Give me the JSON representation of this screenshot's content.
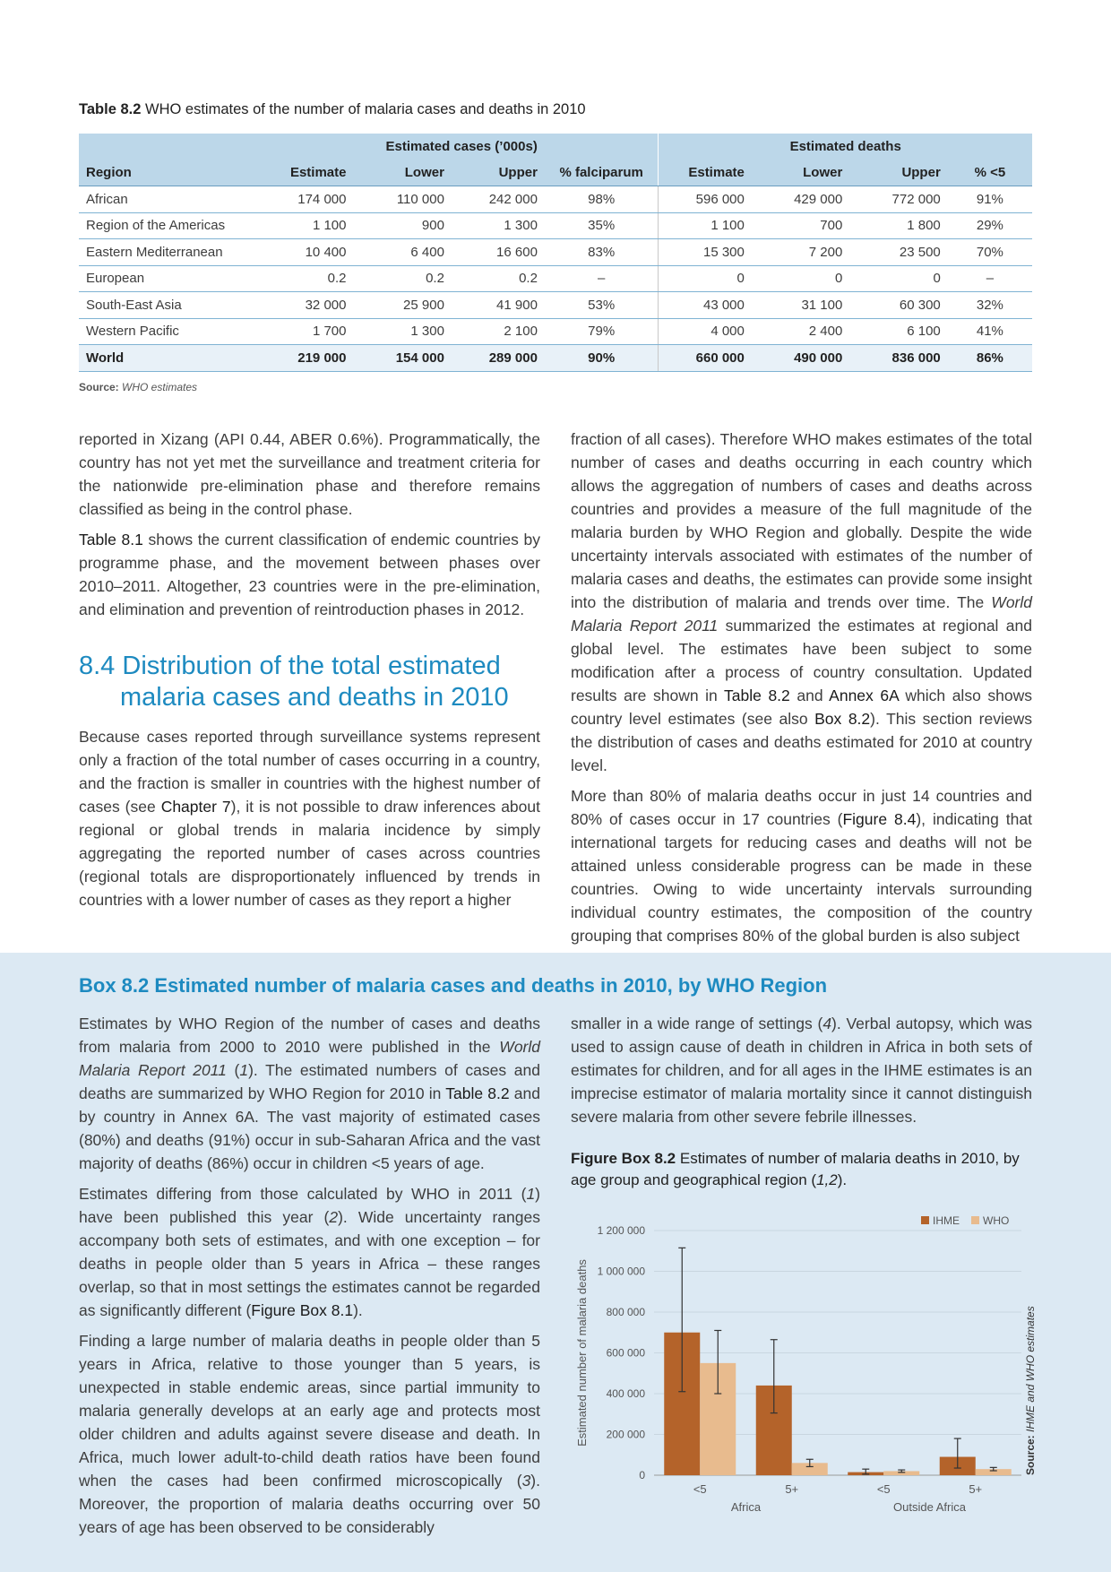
{
  "table": {
    "caption_label": "Table 8.2",
    "caption_text": " WHO estimates of the number of malaria cases and deaths in 2010",
    "group_cases": "Estimated cases (’000s)",
    "group_deaths": "Estimated deaths",
    "headers": [
      "Region",
      "Estimate",
      "Lower",
      "Upper",
      "% falciparum",
      "Estimate",
      "Lower",
      "Upper",
      "% <5"
    ],
    "rows": [
      [
        "African",
        "174 000",
        "110 000",
        "242 000",
        "98%",
        "596 000",
        "429 000",
        "772 000",
        "91%"
      ],
      [
        "Region of the Americas",
        "1 100",
        "900",
        "1 300",
        "35%",
        "1 100",
        "700",
        "1 800",
        "29%"
      ],
      [
        "Eastern Mediterranean",
        "10 400",
        "6 400",
        "16 600",
        "83%",
        "15 300",
        "7 200",
        "23 500",
        "70%"
      ],
      [
        "European",
        "0.2",
        "0.2",
        "0.2",
        "–",
        "0",
        "0",
        "0",
        "–"
      ],
      [
        "South-East Asia",
        "32 000",
        "25 900",
        "41 900",
        "53%",
        "43 000",
        "31 100",
        "60 300",
        "32%"
      ],
      [
        "Western Pacific",
        "1 700",
        "1 300",
        "2 100",
        "79%",
        "4 000",
        "2 400",
        "6 100",
        "41%"
      ]
    ],
    "world": [
      "World",
      "219 000",
      "154 000",
      "289 000",
      "90%",
      "660 000",
      "490 000",
      "836 000",
      "86%"
    ],
    "source_label": "Source:",
    "source_text": " WHO estimates"
  },
  "left_col": {
    "p1": "reported in Xizang (API 0.44, ABER 0.6%). Programmatically, the country has not yet met the surveillance and treatment criteria for the nationwide pre-elimination phase and therefore remains classified as being in the control phase.",
    "p2_ref": "Table 8.1",
    "p2_text": " shows the current classification of endemic countries by programme phase, and the movement between phases over 2010–2011. Altogether, 23 countries were in the pre-elimination, and elimination and prevention of reintroduction phases in 2012."
  },
  "section": {
    "line1": "8.4 Distribution of the total estimated",
    "line2": "malaria cases and deaths in 2010"
  },
  "left_col_2": {
    "p1_a": "Because cases reported through surveillance systems represent only a fraction of the total number of cases occurring in a country, and the fraction is smaller in countries with the highest number of cases (see ",
    "p1_ref": "Chapter 7",
    "p1_b": "), it is not possible to draw inferences about regional or global trends in malaria incidence by simply aggregating the reported number of cases across countries (regional totals are disproportionately influenced by trends in countries with a lower number of cases as they report a higher"
  },
  "right_col": {
    "p1_a": "fraction of all cases). Therefore WHO makes estimates of the total number of cases and deaths occurring in each country which allows the aggregation of numbers of cases and deaths across countries and provides a measure of the full magnitude of the malaria burden by WHO Region and globally. Despite the wide uncertainty intervals associated with estimates of the number of malaria cases and deaths, the estimates can provide some insight into the distribution of malaria and trends over time. The ",
    "p1_italic": "World Malaria Report 2011",
    "p1_b": " summarized the estimates at regional and global level. The estimates have been subject to some modification after a process of country consultation.  Updated results are shown in ",
    "p1_ref1": "Table 8.2",
    "p1_c": " and ",
    "p1_ref2": "Annex 6A",
    "p1_d": " which also shows country level estimates (see also ",
    "p1_ref3": "Box 8.2",
    "p1_e": "). This section reviews the distribution of cases and deaths estimated for 2010 at country level.",
    "p2_a": "More than 80% of malaria deaths occur in just 14 countries and 80% of cases occur in 17 countries (",
    "p2_ref": "Figure 8.4",
    "p2_b": "), indicating that international targets for reducing cases and deaths will not be attained unless considerable progress can be made in these countries. Owing to wide uncertainty intervals surrounding individual country estimates, the composition of the country grouping that comprises 80% of the global burden is also subject"
  },
  "box": {
    "title": "Box 8.2 Estimated number of malaria cases and deaths in 2010, by WHO Region",
    "left_p1_a": "Estimates by WHO Region of the number of cases and deaths from malaria from 2000 to 2010 were published in the ",
    "left_p1_italic": "World Malaria Report 2011",
    "left_p1_b": " (",
    "left_p1_ref_num": "1",
    "left_p1_c": "). The estimated numbers of cases and deaths are summarized by WHO Region for 2010 in ",
    "left_p1_ref": "Table 8.2",
    "left_p1_d": " and by country in Annex 6A. The vast majority of estimated cases (80%) and deaths (91%) occur in sub-Saharan Africa and the vast majority of deaths (86%) occur in children <5 years of age.",
    "left_p2_a": "Estimates differing from those calculated by WHO in 2011 (",
    "left_p2_n1": "1",
    "left_p2_b": ") have been published this year (",
    "left_p2_n2": "2",
    "left_p2_c": "). Wide uncertainty ranges accompany both sets of estimates, and with one exception – for deaths in people older than 5 years in Africa – these ranges overlap, so that in most settings the estimates cannot be regarded as significantly different (",
    "left_p2_ref": "Figure Box 8.1",
    "left_p2_d": ").",
    "left_p3_a": "Finding a large number of malaria deaths in people older than 5 years in Africa, relative to those younger than 5 years, is unexpected in stable endemic areas, since partial immunity to malaria generally develops at an early age and protects most older children and adults against severe disease and death. In Africa, much lower adult-to-child death ratios have been found when the cases had been confirmed microscopically (",
    "left_p3_n": "3",
    "left_p3_b": "). Moreover, the proportion of malaria deaths occurring over 50 years of age has been observed to be considerably",
    "right_p1_a": "smaller in a wide range of settings (",
    "right_p1_n": "4",
    "right_p1_b": "). Verbal autopsy, which was used to assign cause of death in children in Africa in both sets of estimates for children, and for all ages in the IHME estimates is an imprecise estimator of malaria mortality since it cannot distinguish severe malaria from other severe febrile illnesses.",
    "fig_label": "Figure Box 8.2",
    "fig_text_a": " Estimates of number of malaria deaths in 2010, by age group and geographical region (",
    "fig_refs": "1,2",
    "fig_text_b": ")."
  },
  "chart_data": {
    "type": "bar",
    "ylabel": "Estimated number of malaria deaths",
    "ylim": [
      0,
      1200000
    ],
    "yticks": [
      0,
      200000,
      400000,
      600000,
      800000,
      1000000,
      1200000
    ],
    "ytick_labels": [
      "0",
      "200 000",
      "400 000",
      "600 000",
      "800 000",
      "1 000 000",
      "1 200 000"
    ],
    "categories": [
      "<5",
      "5+",
      "<5",
      "5+"
    ],
    "groups": [
      {
        "label": "Africa",
        "span": [
          0,
          1
        ]
      },
      {
        "label": "Outside Africa",
        "span": [
          2,
          3
        ]
      }
    ],
    "series": [
      {
        "name": "IHME",
        "color": "#b4632a",
        "values": [
          700000,
          440000,
          15000,
          90000
        ],
        "lower": [
          410000,
          305000,
          5000,
          35000
        ],
        "upper": [
          1115000,
          665000,
          30000,
          180000
        ]
      },
      {
        "name": "WHO",
        "color": "#e8bb8e",
        "values": [
          550000,
          60000,
          20000,
          30000
        ],
        "lower": [
          400000,
          42000,
          14000,
          22000
        ],
        "upper": [
          710000,
          78000,
          26000,
          38000
        ]
      }
    ],
    "legend": "top-right",
    "grid": true,
    "source_label": "Source:",
    "source_text": " IHME and WHO estimates",
    "axis_color": "#9a9a9a",
    "grid_color": "#c9d6e0"
  }
}
